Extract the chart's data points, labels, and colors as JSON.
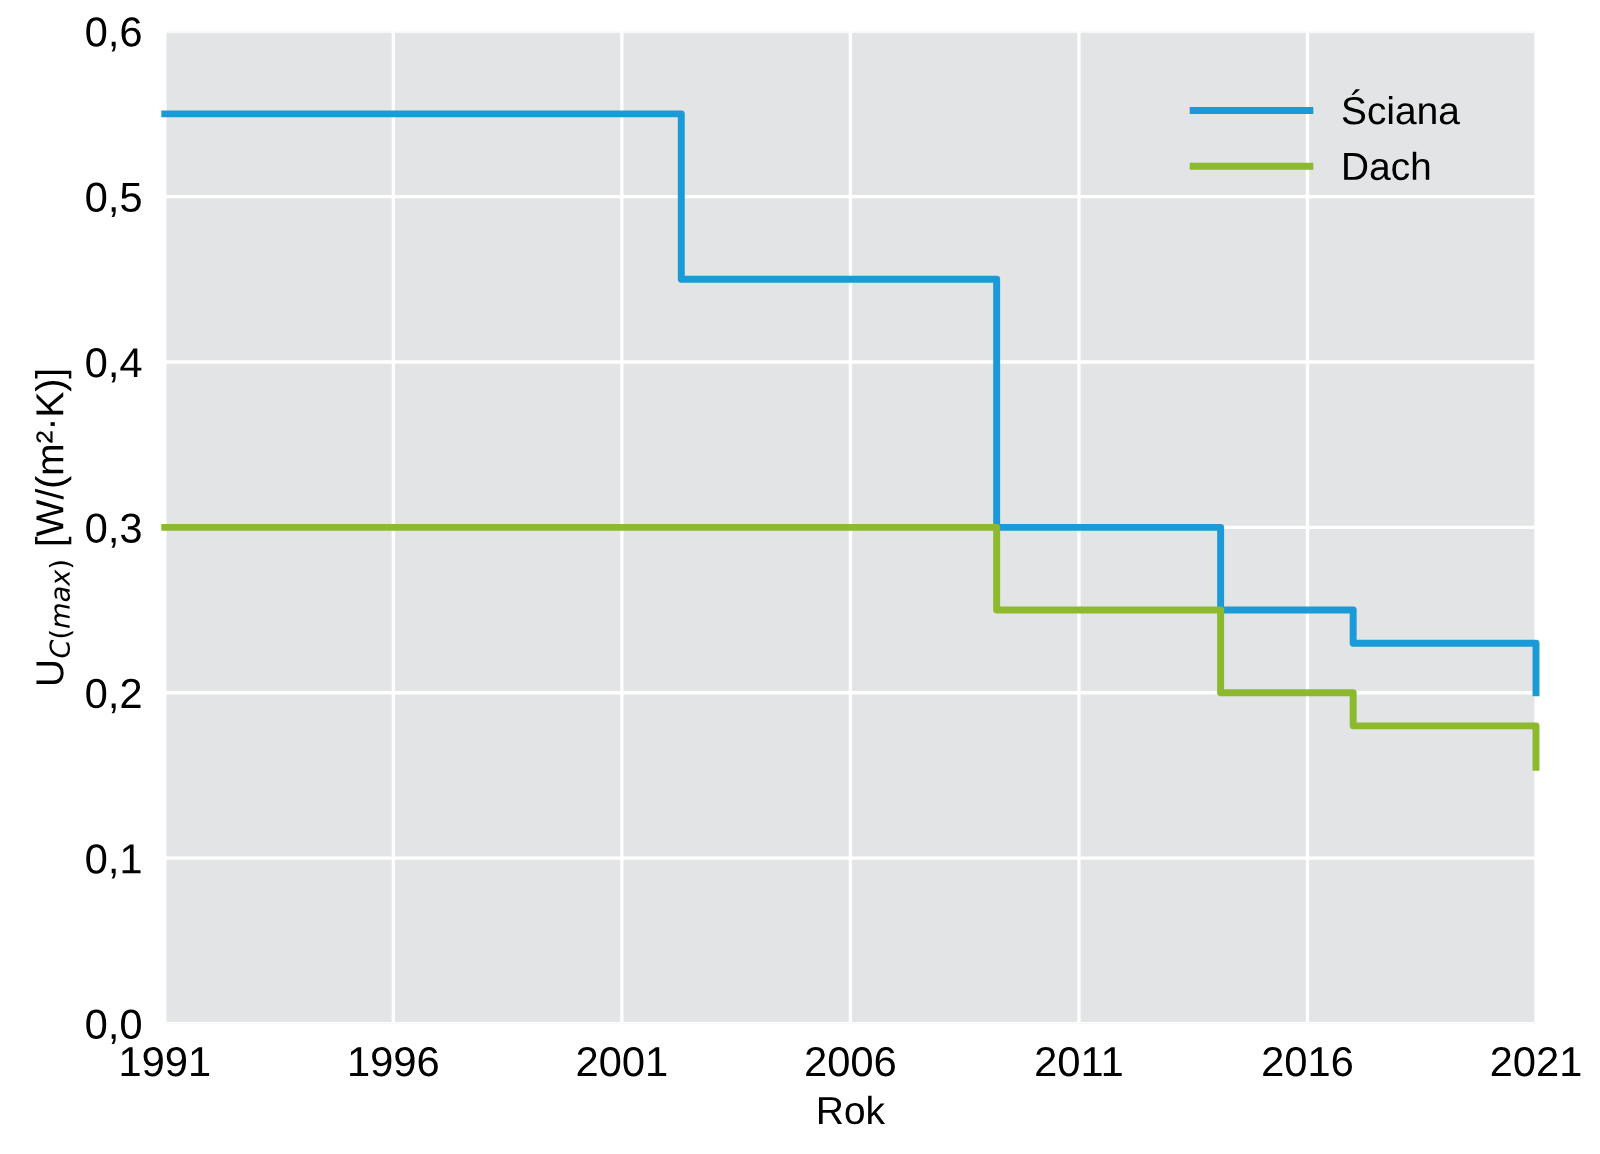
{
  "chart_data": {
    "type": "step",
    "xlabel": "Rok",
    "ylabel": "U$_{C(max)}$ [W/(m²·K)]",
    "series": [
      {
        "name": "Ściana",
        "color": "#1a9ad6",
        "x": [
          1991,
          2002.3,
          2009.2,
          2014.1,
          2017,
          2021,
          2021
        ],
        "values": [
          0.55,
          0.45,
          0.3,
          0.25,
          0.23,
          0.23,
          0.2
        ]
      },
      {
        "name": "Dach",
        "color": "#8db92e",
        "x": [
          1991,
          2009.2,
          2014.1,
          2017,
          2021,
          2021
        ],
        "values": [
          0.3,
          0.25,
          0.2,
          0.18,
          0.18,
          0.155
        ]
      }
    ],
    "xlim": [
      1991,
      2021
    ],
    "xticks": [
      1991,
      1996,
      2001,
      2006,
      2011,
      2016,
      2021
    ],
    "ylim": [
      0,
      0.6
    ],
    "yticks": [
      {
        "value": 0,
        "label": "0,0"
      },
      {
        "value": 0.1,
        "label": "0,1"
      },
      {
        "value": 0.2,
        "label": "0,2"
      },
      {
        "value": 0.3,
        "label": "0,3"
      },
      {
        "value": 0.4,
        "label": "0,4"
      },
      {
        "value": 0.5,
        "label": "0,5"
      },
      {
        "value": 0.6,
        "label": "0,6"
      }
    ],
    "grid": true,
    "legend": "top right",
    "line_style": "solid",
    "marker": "none"
  }
}
